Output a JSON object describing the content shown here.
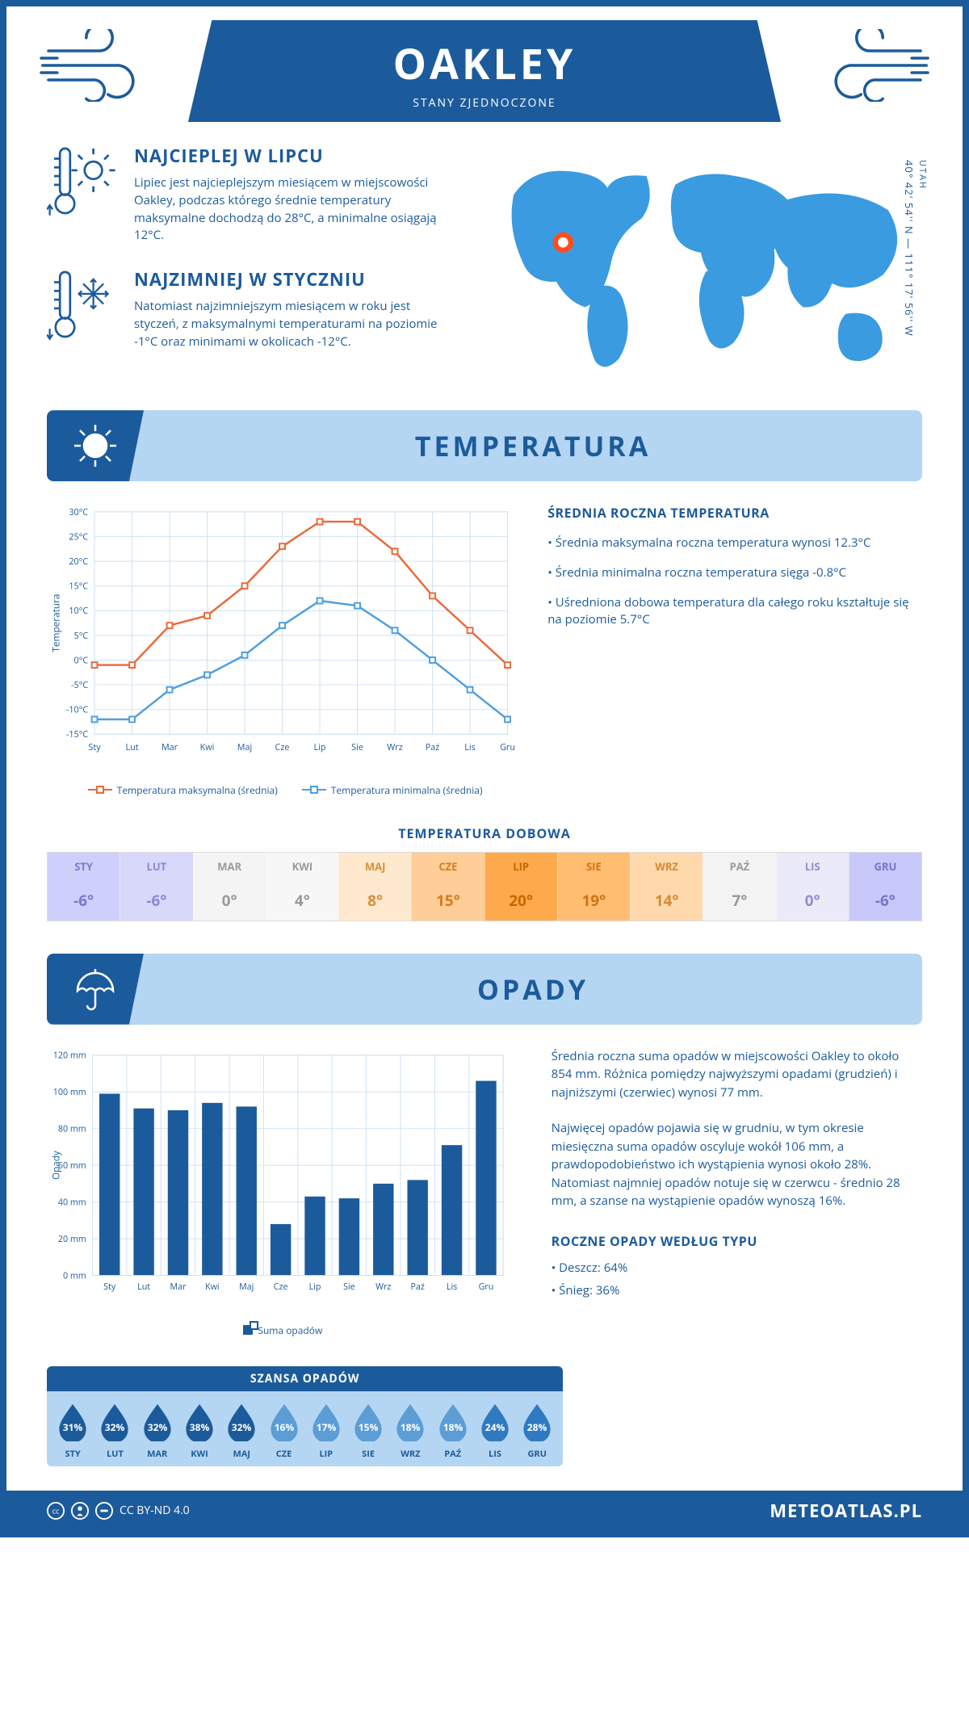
{
  "title": "OAKLEY",
  "subtitle": "STANY ZJEDNOCZONE",
  "region": "UTAH",
  "coords": "40° 42' 54'' N — 111° 17' 56'' W",
  "intro": {
    "warm": {
      "title": "NAJCIEPLEJ W LIPCU",
      "text": "Lipiec jest najcieplejszym miesiącem w miejscowości Oakley, podczas którego średnie temperatury maksymalne dochodzą do 28°C, a minimalne osiągają 12°C."
    },
    "cold": {
      "title": "NAJZIMNIEJ W STYCZNIU",
      "text": "Natomiast najzimniejszym miesiącem w roku jest styczeń, z maksymalnymi temperaturami na poziomie -1°C oraz minimami w okolicach -12°C."
    }
  },
  "temperature": {
    "header": "TEMPERATURA",
    "side_title": "ŚREDNIA ROCZNA TEMPERATURA",
    "bullets": [
      "Średnia maksymalna roczna temperatura wynosi 12.3°C",
      "Średnia minimalna roczna temperatura sięga -0.8°C",
      "Uśredniona dobowa temperatura dla całego roku kształtuje się na poziomie 5.7°C"
    ],
    "chart": {
      "y_label": "Temperatura",
      "y_min": -15,
      "y_max": 30,
      "y_step": 5,
      "months": [
        "Sty",
        "Lut",
        "Mar",
        "Kwi",
        "Maj",
        "Cze",
        "Lip",
        "Sie",
        "Wrz",
        "Paź",
        "Lis",
        "Gru"
      ],
      "series": [
        {
          "name": "Temperatura maksymalna (średnia)",
          "color": "#e96a3a",
          "values": [
            -1,
            -1,
            7,
            9,
            15,
            23,
            28,
            28,
            22,
            13,
            6,
            -1
          ]
        },
        {
          "name": "Temperatura minimalna (średnia)",
          "color": "#4e9ee0",
          "values": [
            -12,
            -12,
            -6,
            -3,
            1,
            7,
            12,
            11,
            6,
            0,
            -6,
            -12
          ]
        }
      ],
      "grid_color": "#cfe2f3",
      "bg": "#ffffff"
    },
    "daily": {
      "title": "TEMPERATURA DOBOWA",
      "months": [
        "STY",
        "LUT",
        "MAR",
        "KWI",
        "MAJ",
        "CZE",
        "LIP",
        "SIE",
        "WRZ",
        "PAŹ",
        "LIS",
        "GRU"
      ],
      "values": [
        "-6°",
        "-6°",
        "0°",
        "4°",
        "8°",
        "15°",
        "20°",
        "19°",
        "14°",
        "7°",
        "0°",
        "-6°"
      ],
      "bg": [
        "#cfcffb",
        "#d8d8fb",
        "#f4f4f4",
        "#f7f7f7",
        "#ffe9ce",
        "#ffcd97",
        "#ffa94d",
        "#ffbd72",
        "#ffd9ab",
        "#f4f3f3",
        "#eaeaf8",
        "#c8c8fa"
      ],
      "fg": [
        "#7a7acc",
        "#8a8ad0",
        "#9a9a9a",
        "#9a9a9a",
        "#d98f3b",
        "#d57c1f",
        "#c96500",
        "#cf7414",
        "#d58a35",
        "#9a9a9a",
        "#8f8fd0",
        "#7676c8"
      ]
    }
  },
  "precip": {
    "header": "OPADY",
    "chart": {
      "y_label": "Opady",
      "y_max": 120,
      "y_step": 20,
      "months": [
        "Sty",
        "Lut",
        "Mar",
        "Kwi",
        "Maj",
        "Cze",
        "Lip",
        "Sie",
        "Wrz",
        "Paź",
        "Lis",
        "Gru"
      ],
      "values": [
        99,
        91,
        90,
        94,
        92,
        28,
        43,
        42,
        50,
        52,
        71,
        106
      ],
      "bar_color": "#1c5b9b",
      "legend": "Suma opadów",
      "grid_color": "#cfe2f3"
    },
    "text1": "Średnia roczna suma opadów w miejscowości Oakley to około 854 mm. Różnica pomiędzy najwyższymi opadami (grudzień) i najniższymi (czerwiec) wynosi 77 mm.",
    "text2": "Najwięcej opadów pojawia się w grudniu, w tym okresie miesięczna suma opadów oscyluje wokół 106 mm, a prawdopodobieństwo ich wystąpienia wynosi około 28%. Natomiast najmniej opadów notuje się w czerwcu - średnio 28 mm, a szanse na wystąpienie opadów wynoszą 16%.",
    "type_title": "ROCZNE OPADY WEDŁUG TYPU",
    "types": [
      "Deszcz: 64%",
      "Śnieg: 36%"
    ],
    "chance": {
      "title": "SZANSA OPADÓW",
      "months": [
        "STY",
        "LUT",
        "MAR",
        "KWI",
        "MAJ",
        "CZE",
        "LIP",
        "SIE",
        "WRZ",
        "PAŹ",
        "LIS",
        "GRU"
      ],
      "values": [
        "31%",
        "32%",
        "32%",
        "38%",
        "32%",
        "16%",
        "17%",
        "15%",
        "18%",
        "18%",
        "24%",
        "28%"
      ],
      "drop_color": "#1c5b9b",
      "drop_light": "#5c9dd6"
    }
  },
  "footer": {
    "license": "CC BY-ND 4.0",
    "site": "METEOATLAS.PL"
  }
}
